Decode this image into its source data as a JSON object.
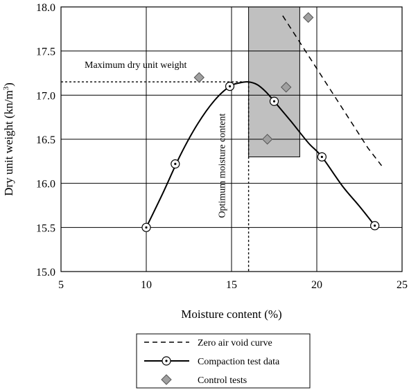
{
  "chart_data": {
    "type": "scatter",
    "xlabel": "Moisture content (%)",
    "ylabel": "Dry unit weight  (kn/m",
    "ylabel_sup": "3",
    "ylabel_close": ")",
    "xlim": [
      5,
      25
    ],
    "ylim": [
      15.0,
      18.0
    ],
    "x_ticks": [
      5,
      10,
      15,
      20,
      25
    ],
    "x_tick_labels": [
      "5",
      "10",
      "15",
      "20",
      "25"
    ],
    "y_ticks": [
      15.0,
      15.5,
      16.0,
      16.5,
      17.0,
      17.5,
      18.0
    ],
    "y_tick_labels": [
      "15.0",
      "15.5",
      "16.0",
      "16.5",
      "17.0",
      "17.5",
      "18.0"
    ],
    "grid": true,
    "series": [
      {
        "name": "Zero air void curve",
        "style": "dashed-line",
        "x": [
          18.0,
          19.0,
          20.0,
          21.0,
          22.0,
          23.0,
          23.8
        ],
        "y": [
          17.9,
          17.6,
          17.3,
          17.0,
          16.7,
          16.4,
          16.2
        ]
      },
      {
        "name": "Compaction test data",
        "style": "line-circles",
        "x": [
          10.0,
          11.7,
          14.9,
          17.5,
          20.3,
          23.4
        ],
        "y": [
          15.5,
          16.22,
          17.1,
          16.93,
          16.3,
          15.52
        ],
        "curve_x": [
          10.0,
          11.0,
          12.0,
          13.0,
          14.0,
          14.9,
          15.5,
          16.0,
          16.5,
          17.0,
          17.5,
          18.5,
          19.5,
          20.3,
          21.5,
          22.5,
          23.4
        ],
        "curve_y": [
          15.5,
          15.9,
          16.32,
          16.67,
          16.94,
          17.1,
          17.14,
          17.15,
          17.12,
          17.04,
          16.93,
          16.7,
          16.46,
          16.3,
          15.97,
          15.74,
          15.52
        ]
      },
      {
        "name": "Control tests",
        "style": "diamonds",
        "x": [
          13.1,
          17.1,
          18.2,
          19.5
        ],
        "y": [
          17.2,
          16.5,
          17.09,
          17.88
        ]
      }
    ],
    "shaded_region": {
      "x": [
        16.0,
        19.0
      ],
      "y": [
        16.3,
        18.0
      ],
      "color": "#c0c0c0"
    },
    "reference_lines": {
      "max_dry_unit_weight": 17.15,
      "optimum_moisture_content": 16.0
    },
    "annotations": {
      "max_label": "Maximum dry unit weight",
      "omc_label": "Optimum moisture content"
    },
    "legend_position": "bottom"
  }
}
